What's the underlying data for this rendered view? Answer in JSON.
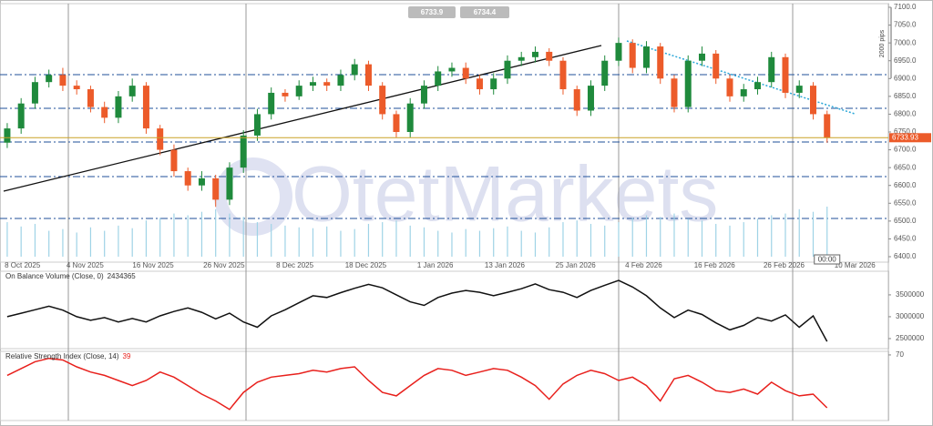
{
  "chart_data": [
    {
      "type": "candlestick",
      "bid": "6733.9",
      "ask": "6734.4",
      "last_price_label": "6733.93",
      "time_label": "00:00",
      "scale_label": "2000 pips",
      "watermark": "OtetMarkets",
      "up_color": "#1f8a3c",
      "down_color": "#ec5b2a",
      "volume_color": "#9fd3e6",
      "xlim": [
        -0.52,
        63.41
      ],
      "xticks": [
        {
          "value": 1.1,
          "label": "8 Oct 2025"
        },
        {
          "value": 5.6,
          "label": "4 Nov 2025"
        },
        {
          "value": 10.5,
          "label": "16 Nov 2025"
        },
        {
          "value": 15.6,
          "label": "26 Nov 2025"
        },
        {
          "value": 20.7,
          "label": "8 Dec 2025"
        },
        {
          "value": 25.8,
          "label": "18 Dec 2025"
        },
        {
          "value": 30.8,
          "label": "1 Jan 2026"
        },
        {
          "value": 35.8,
          "label": "13 Jan 2026"
        },
        {
          "value": 40.9,
          "label": "25 Jan 2026"
        },
        {
          "value": 45.8,
          "label": "4 Feb 2026"
        },
        {
          "value": 50.9,
          "label": "16 Feb 2026"
        },
        {
          "value": 55.9,
          "label": "26 Feb 2026"
        },
        {
          "value": 61,
          "label": "10 Mar 2026"
        }
      ],
      "ylim": [
        6400,
        7100
      ],
      "yticks": [
        {
          "value": 6400,
          "label": "6400.0"
        },
        {
          "value": 6450,
          "label": "6450.0"
        },
        {
          "value": 6500,
          "label": "6500.0"
        },
        {
          "value": 6550,
          "label": "6550.0"
        },
        {
          "value": 6600,
          "label": "6600.0"
        },
        {
          "value": 6650,
          "label": "6650.0"
        },
        {
          "value": 6700,
          "label": "6700.0"
        },
        {
          "value": 6750,
          "label": "6750.0"
        },
        {
          "value": 6800,
          "label": "6800.0"
        },
        {
          "value": 6850,
          "label": "6850.0"
        },
        {
          "value": 6900,
          "label": "6900.0"
        },
        {
          "value": 6950,
          "label": "6950.0"
        },
        {
          "value": 7000,
          "label": "7000.0"
        },
        {
          "value": 7050,
          "label": "7050.0"
        },
        {
          "value": 7100,
          "label": "7100.0"
        }
      ],
      "open": [
        6720,
        6760,
        6830,
        6890,
        6910,
        6880,
        6870,
        6820,
        6790,
        6850,
        6880,
        6760,
        6700,
        6640,
        6600,
        6620,
        6560,
        6650,
        6740,
        6800,
        6860,
        6850,
        6880,
        6890,
        6880,
        6910,
        6940,
        6880,
        6800,
        6750,
        6830,
        6880,
        6920,
        6930,
        6900,
        6870,
        6900,
        6950,
        6960,
        6975,
        6950,
        6870,
        6810,
        6880,
        6950,
        7000,
        6930,
        6990,
        6900,
        6820,
        6950,
        6970,
        6900,
        6850,
        6870,
        6890,
        6960,
        6860,
        6880,
        6800
      ],
      "high": [
        6775,
        6845,
        6905,
        6925,
        6930,
        6895,
        6880,
        6835,
        6865,
        6900,
        6890,
        6770,
        6715,
        6650,
        6640,
        6630,
        6665,
        6755,
        6815,
        6875,
        6870,
        6895,
        6905,
        6900,
        6925,
        6955,
        6950,
        6890,
        6810,
        6845,
        6895,
        6935,
        6945,
        6945,
        6910,
        6915,
        6965,
        6975,
        6990,
        6985,
        6960,
        6880,
        6895,
        6965,
        7015,
        7010,
        7005,
        7000,
        6910,
        6965,
        6990,
        6980,
        6910,
        6885,
        6905,
        6975,
        6970,
        6895,
        6890,
        6810
      ],
      "low": [
        6705,
        6745,
        6815,
        6875,
        6865,
        6855,
        6805,
        6775,
        6775,
        6835,
        6745,
        6685,
        6625,
        6585,
        6585,
        6540,
        6545,
        6635,
        6725,
        6785,
        6835,
        6840,
        6865,
        6865,
        6865,
        6895,
        6865,
        6785,
        6735,
        6735,
        6815,
        6865,
        6905,
        6885,
        6855,
        6855,
        6885,
        6935,
        6945,
        6935,
        6855,
        6795,
        6795,
        6865,
        6935,
        6915,
        6915,
        6885,
        6805,
        6805,
        6935,
        6885,
        6835,
        6835,
        6855,
        6875,
        6845,
        6845,
        6785,
        6720
      ],
      "close": [
        6760,
        6830,
        6890,
        6910,
        6880,
        6870,
        6820,
        6790,
        6850,
        6880,
        6760,
        6700,
        6640,
        6600,
        6620,
        6560,
        6650,
        6740,
        6800,
        6860,
        6850,
        6880,
        6890,
        6880,
        6910,
        6940,
        6880,
        6800,
        6750,
        6830,
        6880,
        6920,
        6930,
        6900,
        6870,
        6900,
        6950,
        6960,
        6975,
        6950,
        6870,
        6810,
        6880,
        6950,
        7000,
        6930,
        6990,
        6900,
        6820,
        6950,
        6970,
        6900,
        6850,
        6870,
        6890,
        6960,
        6860,
        6880,
        6800,
        6733.93
      ],
      "volume": [
        40,
        35,
        38,
        30,
        32,
        28,
        34,
        30,
        36,
        33,
        42,
        45,
        50,
        48,
        52,
        55,
        50,
        46,
        40,
        38,
        36,
        34,
        33,
        35,
        30,
        32,
        38,
        40,
        42,
        36,
        34,
        30,
        28,
        32,
        30,
        33,
        35,
        30,
        28,
        34,
        40,
        42,
        38,
        36,
        40,
        45,
        48,
        46,
        50,
        44,
        42,
        38,
        36,
        40,
        44,
        48,
        50,
        55,
        52,
        58
      ]
    },
    {
      "type": "line",
      "title": "On Balance Volume (Close, 0)",
      "value_label": "2434365",
      "color": "#111111",
      "ylim": [
        2270000,
        4040000
      ],
      "yticks": [
        2500000,
        3000000,
        3500000
      ],
      "values": [
        3000000,
        3080000,
        3160000,
        3240000,
        3150000,
        3000000,
        2920000,
        2980000,
        2880000,
        2960000,
        2880000,
        3020000,
        3120000,
        3200000,
        3100000,
        2950000,
        3080000,
        2880000,
        2760000,
        3020000,
        3160000,
        3320000,
        3480000,
        3440000,
        3550000,
        3650000,
        3740000,
        3660000,
        3500000,
        3340000,
        3260000,
        3440000,
        3540000,
        3600000,
        3560000,
        3480000,
        3560000,
        3640000,
        3750000,
        3620000,
        3560000,
        3440000,
        3600000,
        3720000,
        3830000,
        3680000,
        3480000,
        3200000,
        2980000,
        3150000,
        3050000,
        2860000,
        2700000,
        2800000,
        2980000,
        2900000,
        3040000,
        2760000,
        3020000,
        2434365
      ]
    },
    {
      "type": "line",
      "title": "Relative Strength Index (Close, 14)",
      "value_label": "39",
      "color": "#e8201c",
      "ylim": [
        31.5,
        72.1
      ],
      "yticks": [
        70
      ],
      "values": [
        58,
        62,
        66,
        68,
        67,
        63,
        60,
        58,
        55,
        52,
        55,
        60,
        57,
        52,
        47,
        43,
        38,
        48,
        54,
        57,
        58,
        59,
        61,
        60,
        62,
        63,
        55,
        48,
        46,
        52,
        58,
        62,
        61,
        58,
        60,
        62,
        61,
        57,
        52,
        44,
        53,
        58,
        61,
        59,
        55,
        57,
        52,
        43,
        56,
        58,
        54,
        49,
        48,
        50,
        47,
        54,
        49,
        46,
        47,
        39
      ]
    }
  ]
}
